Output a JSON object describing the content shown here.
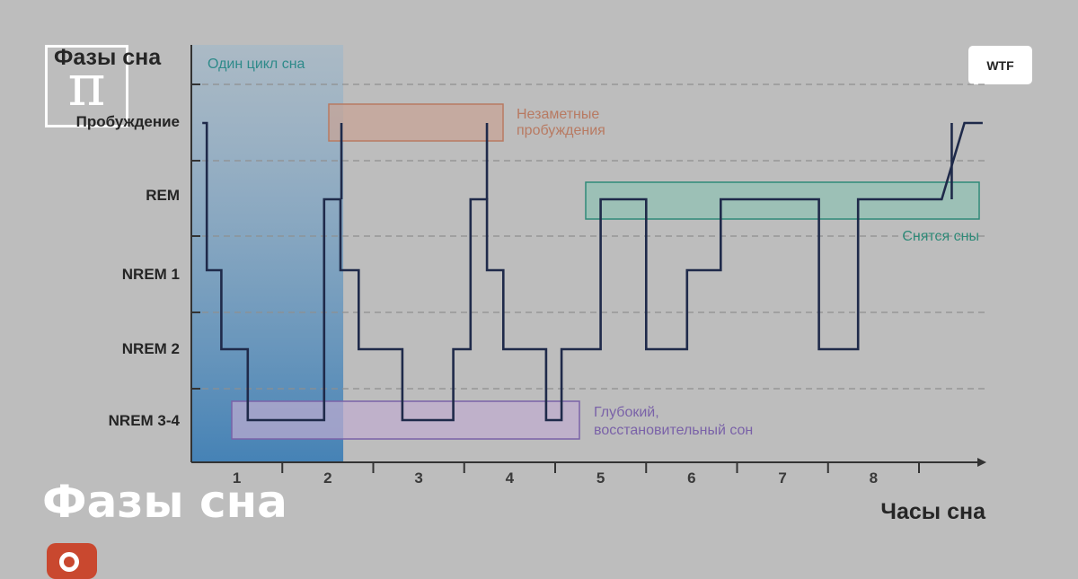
{
  "site_logo_glyph": "π",
  "badge_label": "WTF",
  "headline": "Фазы сна",
  "chart_data": {
    "type": "line",
    "title": "Фазы сна",
    "xlabel": "Часы сна",
    "ylabel": "",
    "stages": [
      "Пробуждение",
      "REM",
      "NREM 1",
      "NREM 2",
      "NREM 3-4"
    ],
    "x_ticks": [
      "1",
      "2",
      "3",
      "4",
      "5",
      "6",
      "7",
      "8"
    ],
    "xlim": [
      0,
      8.7
    ],
    "grid": true,
    "series": [
      {
        "points": [
          [
            0.12,
            0
          ],
          [
            0.17,
            0
          ],
          [
            0.17,
            2
          ],
          [
            0.33,
            2
          ],
          [
            0.33,
            3
          ],
          [
            0.62,
            3
          ],
          [
            0.62,
            4
          ],
          [
            1.46,
            4
          ],
          [
            1.46,
            1
          ],
          [
            1.64,
            1
          ],
          [
            1.64,
            2
          ],
          [
            1.84,
            2
          ],
          [
            1.84,
            3
          ],
          [
            2.32,
            3
          ],
          [
            2.32,
            4
          ],
          [
            2.88,
            4
          ],
          [
            2.88,
            3
          ],
          [
            3.07,
            3
          ],
          [
            3.07,
            1
          ],
          [
            3.25,
            1
          ],
          [
            3.25,
            2
          ],
          [
            3.43,
            2
          ],
          [
            3.43,
            3
          ],
          [
            3.9,
            3
          ],
          [
            3.9,
            4
          ],
          [
            4.07,
            4
          ],
          [
            4.07,
            3
          ],
          [
            4.5,
            3
          ],
          [
            4.5,
            1
          ],
          [
            5.0,
            1
          ],
          [
            5.0,
            3
          ],
          [
            5.45,
            3
          ],
          [
            5.45,
            2
          ],
          [
            5.82,
            2
          ],
          [
            5.82,
            1
          ],
          [
            6.9,
            1
          ],
          [
            6.9,
            3
          ],
          [
            7.33,
            3
          ],
          [
            7.33,
            1
          ],
          [
            8.25,
            1
          ],
          [
            8.5,
            0
          ],
          [
            8.7,
            0
          ]
        ]
      }
    ],
    "spikes": [
      {
        "x": 1.65,
        "from": 1,
        "to": 0
      },
      {
        "x": 3.25,
        "from": 1,
        "to": 0
      },
      {
        "x": 8.36,
        "from": 1,
        "to": 0
      }
    ],
    "highlight": {
      "label": "Один цикл сна",
      "x_from": 0.12,
      "x_to": 1.67
    },
    "annotations": [
      {
        "label": "Незаметные пробуждения",
        "color": "#b87a62",
        "fill": "#c9a294"
      },
      {
        "label": "Снятся сны",
        "color": "#2f8a78",
        "fill": "#8fc2b3"
      },
      {
        "label": "Глубокий, восстановительный сон",
        "lines": [
          "Глубокий,",
          "восстановительный сон"
        ],
        "color": "#7a62a8",
        "fill": "#c0acd0"
      }
    ],
    "colors": {
      "line": "#1f2a4a",
      "cycle_band": "#5a8fba",
      "cycle_label": "#2e8a8a",
      "axis": "#333333"
    }
  }
}
